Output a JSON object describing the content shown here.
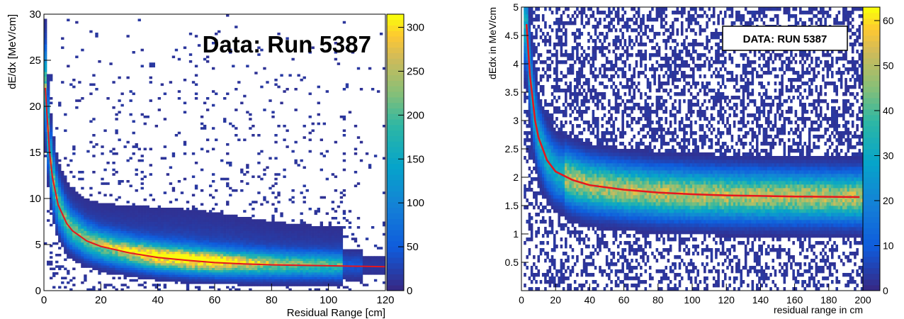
{
  "chart_data": [
    {
      "type": "heatmap",
      "xlabel": "Residual Range [cm]",
      "ylabel": "dE/dx [MeV/cm]",
      "xlim": [
        0,
        120
      ],
      "ylim": [
        0,
        30
      ],
      "x_ticks": [
        "0",
        "20",
        "40",
        "60",
        "80",
        "100",
        "120"
      ],
      "y_ticks": [
        "0",
        "5",
        "10",
        "15",
        "20",
        "25",
        "30"
      ],
      "colorbar": {
        "range": [
          0,
          315
        ],
        "ticks": [
          "0",
          "50",
          "100",
          "150",
          "200",
          "250",
          "300"
        ]
      },
      "annotation": "Data: Run 5387",
      "fit_curve": {
        "color": "#e6161e",
        "x": [
          0.5,
          1,
          2,
          3,
          5,
          8,
          10,
          15,
          20,
          30,
          40,
          50,
          60,
          70,
          80,
          90,
          100,
          110,
          120
        ],
        "y": [
          22,
          19.5,
          15,
          12.3,
          9.3,
          7.3,
          6.5,
          5.4,
          4.8,
          4.1,
          3.6,
          3.3,
          3.05,
          2.9,
          2.8,
          2.75,
          2.7,
          2.65,
          2.6
        ]
      },
      "band": {
        "peak_region_x": [
          30,
          70
        ],
        "peak_value_y": 3.5
      }
    },
    {
      "type": "heatmap",
      "xlabel": "residual range in cm",
      "ylabel": "dEdx in MeV/cm",
      "xlim": [
        0,
        200
      ],
      "ylim": [
        0,
        5
      ],
      "x_ticks": [
        "0",
        "20",
        "40",
        "60",
        "80",
        "100",
        "120",
        "140",
        "160",
        "180",
        "200"
      ],
      "y_ticks": [
        "0.5",
        "1",
        "1.5",
        "2",
        "2.5",
        "3",
        "3.5",
        "4",
        "4.5",
        "5"
      ],
      "colorbar": {
        "range": [
          0,
          63
        ],
        "ticks": [
          "0",
          "10",
          "20",
          "30",
          "40",
          "50",
          "60"
        ]
      },
      "annotation": "DATA: RUN 5387",
      "fit_curve": {
        "color": "#e6161e",
        "x": [
          3,
          5,
          8,
          10,
          15,
          20,
          30,
          40,
          60,
          80,
          100,
          120,
          140,
          160,
          180,
          198
        ],
        "y": [
          4.7,
          3.8,
          3.0,
          2.7,
          2.3,
          2.1,
          1.95,
          1.86,
          1.78,
          1.73,
          1.7,
          1.68,
          1.67,
          1.66,
          1.655,
          1.65
        ]
      },
      "band": {
        "peak_region_x": [
          30,
          200
        ],
        "peak_value_y": 1.78
      }
    }
  ]
}
